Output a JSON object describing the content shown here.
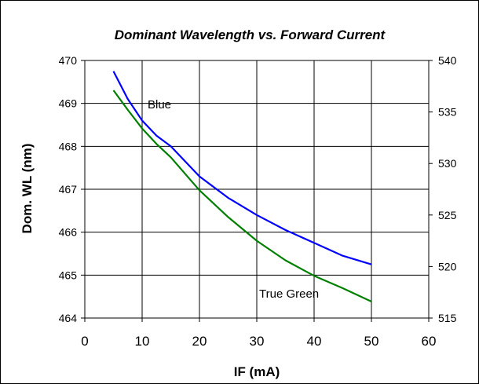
{
  "chart_data": {
    "type": "line",
    "title": "Dominant Wavelength vs. Forward Current",
    "xlabel": "IF (mA)",
    "ylabel": "Dom. WL (nm)",
    "xlim": [
      0,
      60
    ],
    "ylim": [
      464,
      470
    ],
    "y2lim": [
      515,
      540
    ],
    "xticks": [
      "0",
      "10",
      "20",
      "30",
      "40",
      "50",
      "60"
    ],
    "yticks": [
      "464",
      "465",
      "466",
      "467",
      "468",
      "469",
      "470"
    ],
    "y2ticks": [
      "515",
      "520",
      "525",
      "530",
      "535",
      "540"
    ],
    "grid": true,
    "series": [
      {
        "name": "Blue",
        "axis": "left",
        "color": "#0000ff",
        "x": [
          5,
          7.5,
          10,
          12.5,
          15,
          20,
          25,
          30,
          35,
          40,
          45,
          50
        ],
        "y": [
          469.75,
          469.1,
          468.6,
          468.25,
          468.0,
          467.3,
          466.8,
          466.4,
          466.05,
          465.75,
          465.45,
          465.25
        ]
      },
      {
        "name": "True Green",
        "axis": "right",
        "color": "#008000",
        "x": [
          5,
          7.5,
          10,
          12.5,
          15,
          20,
          25,
          30,
          35,
          40,
          45,
          50
        ],
        "y": [
          537.1,
          535.2,
          533.4,
          531.9,
          530.6,
          527.4,
          524.8,
          522.5,
          520.6,
          519.1,
          517.9,
          516.6
        ]
      }
    ],
    "annotations": [
      "Blue",
      "True Green"
    ]
  }
}
